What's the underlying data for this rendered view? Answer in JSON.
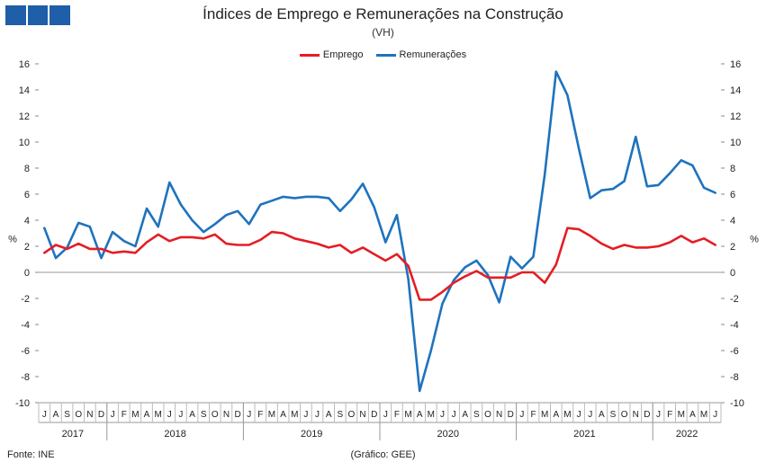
{
  "header": {
    "title": "Índices de Emprego e Remunerações na Construção",
    "subtitle": "(VH)"
  },
  "footer": {
    "source": "Fonte: INE",
    "credit": "(Gráfico: GEE)"
  },
  "colors": {
    "logo": "#1f5ea8",
    "emprego": "#e31e24",
    "remuneracoes": "#1e73be"
  },
  "chart_data": {
    "type": "line",
    "ylabel_left": "%",
    "ylabel_right": "%",
    "ylim": [
      -10,
      16
    ],
    "yticks": [
      -10,
      -8,
      -6,
      -4,
      -2,
      0,
      2,
      4,
      6,
      8,
      10,
      12,
      14,
      16
    ],
    "grid": false,
    "legend_position": "top-center",
    "months": [
      "J",
      "A",
      "S",
      "O",
      "N",
      "D",
      "J",
      "F",
      "M",
      "A",
      "M",
      "J",
      "J",
      "A",
      "S",
      "O",
      "N",
      "D",
      "J",
      "F",
      "M",
      "A",
      "M",
      "J",
      "J",
      "A",
      "S",
      "O",
      "N",
      "D",
      "J",
      "F",
      "M",
      "A",
      "M",
      "J",
      "J",
      "A",
      "S",
      "O",
      "N",
      "D",
      "J",
      "F",
      "M",
      "A",
      "M",
      "J",
      "J",
      "A",
      "S",
      "O",
      "N",
      "D",
      "J",
      "F",
      "M",
      "A",
      "M",
      "J"
    ],
    "years": [
      {
        "label": "2017",
        "count": 6
      },
      {
        "label": "2018",
        "count": 12
      },
      {
        "label": "2019",
        "count": 12
      },
      {
        "label": "2020",
        "count": 12
      },
      {
        "label": "2021",
        "count": 12
      },
      {
        "label": "2022",
        "count": 6
      }
    ],
    "series": [
      {
        "name": "Emprego",
        "color": "#e31e24",
        "values": [
          1.5,
          2.1,
          1.8,
          2.2,
          1.8,
          1.8,
          1.5,
          1.6,
          1.5,
          2.3,
          2.9,
          2.4,
          2.7,
          2.7,
          2.6,
          2.9,
          2.2,
          2.1,
          2.1,
          2.5,
          3.1,
          3.0,
          2.6,
          2.4,
          2.2,
          1.9,
          2.1,
          1.5,
          1.9,
          1.4,
          0.9,
          1.4,
          0.5,
          -2.1,
          -2.1,
          -1.5,
          -0.8,
          -0.3,
          0.1,
          -0.4,
          -0.4,
          -0.4,
          0.0,
          0.0,
          -0.8,
          0.6,
          3.4,
          3.3,
          2.8,
          2.2,
          1.8,
          2.1,
          1.9,
          1.9,
          2.0,
          2.3,
          2.8,
          2.3,
          2.6,
          2.1
        ]
      },
      {
        "name": "Remunerações",
        "color": "#1e73be",
        "values": [
          3.4,
          1.1,
          1.9,
          3.8,
          3.5,
          1.1,
          3.1,
          2.4,
          2.0,
          4.9,
          3.5,
          6.9,
          5.2,
          4.0,
          3.1,
          3.7,
          4.4,
          4.7,
          3.7,
          5.2,
          5.5,
          5.8,
          5.7,
          5.8,
          5.8,
          5.7,
          4.7,
          5.6,
          6.8,
          5.0,
          2.3,
          4.4,
          -0.5,
          -9.1,
          -6.0,
          -2.4,
          -0.6,
          0.4,
          0.9,
          -0.2,
          -2.3,
          1.2,
          0.3,
          1.2,
          7.5,
          15.4,
          13.6,
          9.5,
          5.7,
          6.3,
          6.4,
          7.0,
          10.4,
          6.6,
          6.7,
          7.6,
          8.6,
          8.2,
          6.5,
          6.1
        ]
      }
    ]
  }
}
